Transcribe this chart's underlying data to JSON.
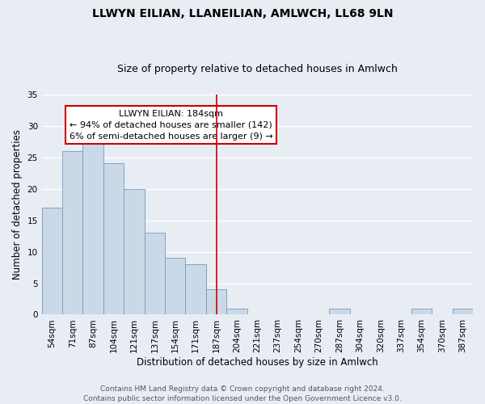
{
  "title": "LLWYN EILIAN, LLANEILIAN, AMLWCH, LL68 9LN",
  "subtitle": "Size of property relative to detached houses in Amlwch",
  "xlabel": "Distribution of detached houses by size in Amlwch",
  "ylabel": "Number of detached properties",
  "bar_labels": [
    "54sqm",
    "71sqm",
    "87sqm",
    "104sqm",
    "121sqm",
    "137sqm",
    "154sqm",
    "171sqm",
    "187sqm",
    "204sqm",
    "221sqm",
    "237sqm",
    "254sqm",
    "270sqm",
    "287sqm",
    "304sqm",
    "320sqm",
    "337sqm",
    "354sqm",
    "370sqm",
    "387sqm"
  ],
  "bar_values": [
    17,
    26,
    28,
    24,
    20,
    13,
    9,
    8,
    4,
    1,
    0,
    0,
    0,
    0,
    1,
    0,
    0,
    0,
    1,
    0,
    1
  ],
  "bar_color": "#cad9e8",
  "bar_edge_color": "#7799bb",
  "background_color": "#e8edf4",
  "grid_color": "#ffffff",
  "vline_x_index": 8,
  "vline_color": "#cc0000",
  "annotation_title": "LLWYN EILIAN: 184sqm",
  "annotation_line1": "← 94% of detached houses are smaller (142)",
  "annotation_line2": "6% of semi-detached houses are larger (9) →",
  "annotation_box_color": "#cc0000",
  "ylim": [
    0,
    35
  ],
  "yticks": [
    0,
    5,
    10,
    15,
    20,
    25,
    30,
    35
  ],
  "footer_line1": "Contains HM Land Registry data © Crown copyright and database right 2024.",
  "footer_line2": "Contains public sector information licensed under the Open Government Licence v3.0.",
  "title_fontsize": 10,
  "subtitle_fontsize": 9,
  "axis_label_fontsize": 8.5,
  "tick_fontsize": 7.5,
  "annotation_fontsize": 8,
  "footer_fontsize": 6.5
}
